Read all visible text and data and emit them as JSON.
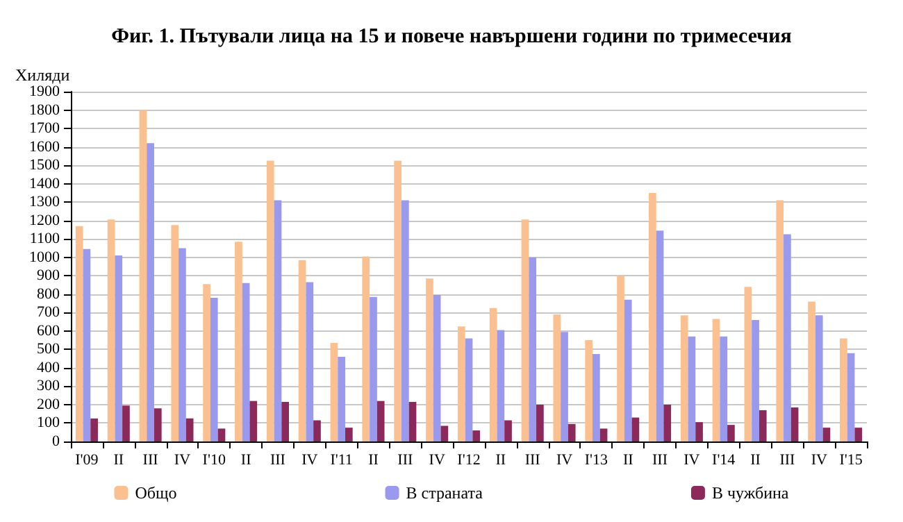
{
  "chart_data": {
    "type": "bar",
    "title": "Фиг. 1. Пътували лица на 15 и повече навършени години по тримесечия",
    "ylabel": "Хиляди",
    "categories": [
      "I'09",
      "II",
      "III",
      "IV",
      "I'10",
      "II",
      "III",
      "IV",
      "I'11",
      "II",
      "III",
      "IV",
      "I'12",
      "II",
      "III",
      "IV",
      "I'13",
      "II",
      "III",
      "IV",
      "I'14",
      "II",
      "III",
      "IV",
      "I'15"
    ],
    "series": [
      {
        "name": "Общо",
        "color": "#fac090",
        "values": [
          1170,
          1205,
          1800,
          1175,
          855,
          1085,
          1525,
          985,
          535,
          1005,
          1525,
          885,
          625,
          725,
          1205,
          690,
          550,
          900,
          1350,
          685,
          665,
          840,
          1310,
          760,
          560
        ]
      },
      {
        "name": "В страната",
        "color": "#9999ee",
        "values": [
          1045,
          1010,
          1620,
          1050,
          780,
          860,
          1310,
          865,
          460,
          785,
          1310,
          795,
          560,
          605,
          1000,
          595,
          475,
          770,
          1145,
          570,
          570,
          660,
          1125,
          685,
          480
        ]
      },
      {
        "name": "В чужбина",
        "color": "#8b2a5a",
        "values": [
          125,
          195,
          180,
          125,
          70,
          220,
          215,
          115,
          75,
          220,
          215,
          85,
          60,
          115,
          200,
          95,
          70,
          130,
          200,
          105,
          90,
          170,
          185,
          75,
          75
        ]
      }
    ],
    "ylim": [
      0,
      1900
    ],
    "yticks": [
      0,
      100,
      200,
      300,
      400,
      500,
      600,
      700,
      800,
      900,
      1000,
      1100,
      1200,
      1300,
      1400,
      1500,
      1600,
      1700,
      1800,
      1900
    ],
    "grid": "y",
    "legend": "bottom"
  }
}
